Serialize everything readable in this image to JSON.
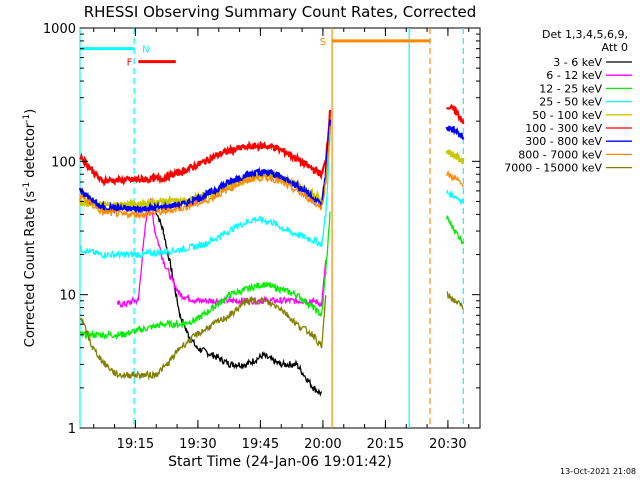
{
  "chart_data": {
    "type": "line",
    "title": "RHESSI Observing Summary Count Rates, Corrected",
    "xlabel": "Start Time (24-Jan-06 19:01:42)",
    "ylabel": "Corrected Count Rate (s",
    "ylabel_sup": "-1",
    "ylabel_tail": " detector",
    "ylabel_sup2": "-1",
    "ylabel_end": ")",
    "yscale": "log",
    "ylim": [
      1,
      1000
    ],
    "xlim_minutes": [
      0,
      96
    ],
    "x_ticks": [
      {
        "label": "19:15",
        "min": 13.3
      },
      {
        "label": "19:30",
        "min": 28.3
      },
      {
        "label": "19:45",
        "min": 43.3
      },
      {
        "label": "20:00",
        "min": 58.3
      },
      {
        "label": "20:15",
        "min": 73.3
      },
      {
        "label": "20:30",
        "min": 88.3
      }
    ],
    "y_ticks": [
      {
        "label": "1",
        "v": 1
      },
      {
        "label": "10",
        "v": 10
      },
      {
        "label": "100",
        "v": 100
      },
      {
        "label": "1000",
        "v": 1000
      }
    ],
    "legend_header": [
      "Det 1,3,4,5,6,9,",
      "Att 0"
    ],
    "legend_position": "right",
    "series": [
      {
        "name": "3 - 6 keV",
        "color": "#000000",
        "x": [
          0,
          5,
          10,
          13,
          16,
          18,
          20,
          22,
          24,
          26,
          28,
          32,
          36,
          40,
          44,
          48,
          52,
          56,
          58
        ],
        "y": [
          null,
          null,
          null,
          null,
          null,
          45,
          30,
          15,
          7,
          5,
          4,
          3.5,
          3,
          3,
          3.5,
          3,
          3,
          2,
          1.8
        ]
      },
      {
        "name": "6 - 12 keV",
        "color": "#ff00ff",
        "x": [
          9,
          11,
          13,
          14,
          15,
          16,
          17,
          18,
          20,
          22,
          24,
          28,
          32,
          36,
          40,
          44,
          48,
          52,
          56,
          58,
          59
        ],
        "y": [
          8.5,
          8.5,
          9,
          9,
          20,
          40,
          50,
          30,
          18,
          13,
          10,
          9,
          9,
          9,
          9,
          9,
          9,
          9,
          9,
          8.5,
          18
        ]
      },
      {
        "name": "12 - 25 keV",
        "color": "#00ee00",
        "x": [
          0,
          5,
          10,
          15,
          20,
          24,
          28,
          32,
          36,
          40,
          44,
          48,
          52,
          56,
          58,
          59,
          60,
          86.5,
          88,
          90,
          92
        ],
        "y": [
          5,
          5,
          5,
          5.5,
          6,
          6,
          6.5,
          8,
          10,
          11,
          12,
          11,
          10,
          8,
          7,
          15,
          40,
          null,
          38,
          30,
          25
        ]
      },
      {
        "name": "25 - 50 keV",
        "color": "#00ffff",
        "x": [
          0,
          5,
          10,
          15,
          20,
          25,
          30,
          34,
          38,
          42,
          46,
          50,
          54,
          58,
          59,
          60,
          86.5,
          88,
          90,
          92
        ],
        "y": [
          22,
          20,
          20,
          20,
          21,
          22,
          24,
          28,
          33,
          37,
          35,
          30,
          27,
          24,
          40,
          150,
          null,
          58,
          55,
          50
        ]
      },
      {
        "name": "50 - 100 keV",
        "color": "#c8c800",
        "x": [
          0,
          5,
          10,
          15,
          20,
          25,
          30,
          34,
          38,
          42,
          46,
          50,
          54,
          58,
          59,
          60,
          86.5,
          88,
          90,
          92
        ],
        "y": [
          50,
          47,
          47,
          48,
          50,
          50,
          55,
          62,
          70,
          78,
          80,
          72,
          62,
          52,
          70,
          180,
          null,
          120,
          110,
          100
        ]
      },
      {
        "name": "100 - 300 keV",
        "color": "#ff0000",
        "x": [
          0,
          5,
          10,
          15,
          20,
          25,
          30,
          34,
          38,
          42,
          46,
          50,
          54,
          58,
          59,
          60,
          86.5,
          88,
          90,
          92
        ],
        "y": [
          110,
          72,
          72,
          73,
          75,
          85,
          100,
          115,
          125,
          130,
          130,
          115,
          95,
          80,
          100,
          230,
          null,
          260,
          240,
          200
        ]
      },
      {
        "name": "300 - 800 keV",
        "color": "#0000ff",
        "x": [
          0,
          5,
          10,
          15,
          20,
          25,
          30,
          34,
          38,
          42,
          46,
          50,
          54,
          58,
          59,
          60,
          86.5,
          88,
          90,
          92
        ],
        "y": [
          60,
          45,
          44,
          44,
          45,
          48,
          55,
          65,
          75,
          82,
          82,
          72,
          60,
          47,
          80,
          200,
          null,
          180,
          170,
          150
        ]
      },
      {
        "name": "800 - 7000 keV",
        "color": "#ff8800",
        "x": [
          0,
          5,
          10,
          15,
          20,
          25,
          30,
          34,
          38,
          42,
          46,
          50,
          54,
          58,
          59,
          60,
          86.5,
          88,
          90,
          92
        ],
        "y": [
          55,
          42,
          40,
          40,
          42,
          45,
          50,
          58,
          68,
          75,
          75,
          65,
          55,
          45,
          70,
          180,
          null,
          80,
          75,
          65
        ]
      },
      {
        "name": "7000 - 15000 keV",
        "color": "#808000",
        "x": [
          0,
          3,
          6,
          9,
          12,
          15,
          18,
          21,
          24,
          28,
          32,
          36,
          40,
          44,
          48,
          52,
          56,
          58,
          59,
          86.5,
          88,
          90,
          92
        ],
        "y": [
          7,
          4,
          3,
          2.5,
          2.5,
          2.5,
          2.5,
          3,
          4,
          5,
          6,
          7,
          9,
          9,
          8,
          6,
          5,
          4,
          10,
          null,
          10,
          9,
          8
        ]
      }
    ],
    "markers": [
      {
        "label": "N",
        "color": "#00ffff",
        "x_start": 0,
        "x_end": 13,
        "level": 700
      },
      {
        "label": "F",
        "color": "#ff0000",
        "x_start": 14,
        "x_end": 23,
        "level": 560
      },
      {
        "label": "S",
        "color": "#ff8800",
        "x_start": 60.5,
        "x_end": 84,
        "level": 800
      }
    ],
    "vlines": [
      {
        "min": 0,
        "color": "#00ffff",
        "dash": false
      },
      {
        "min": 13,
        "color": "#00ffff",
        "dash": true
      },
      {
        "min": 60.5,
        "color": "#ff8800",
        "dash": false
      },
      {
        "min": 79,
        "color": "#00ffff",
        "dash": false
      },
      {
        "min": 84,
        "color": "#ff8800",
        "dash": true
      },
      {
        "min": 92,
        "color": "#00ffff",
        "dash": true
      }
    ],
    "gaps": [
      [
        60.5,
        86.5
      ]
    ],
    "footer": "13-Oct-2021 21:08"
  }
}
